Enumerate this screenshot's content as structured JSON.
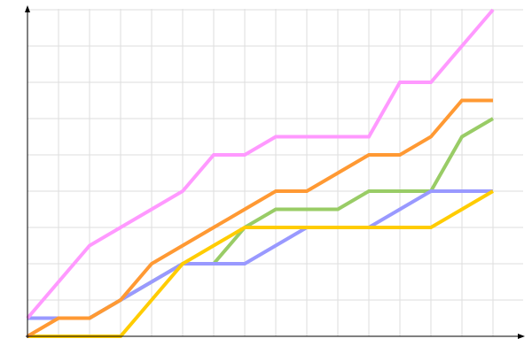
{
  "chart_data": {
    "type": "line",
    "title": "",
    "xlabel": "",
    "ylabel": "",
    "x": [
      0,
      1,
      2,
      3,
      4,
      5,
      6,
      7,
      8,
      9,
      10,
      11,
      12,
      13,
      14,
      15
    ],
    "xlim": [
      0,
      15
    ],
    "ylim": [
      0,
      9
    ],
    "grid": true,
    "legend": "none",
    "series": [
      {
        "color": "#99cc66",
        "values": [
          0.5,
          0.5,
          0.5,
          1,
          1.5,
          2,
          2,
          3,
          3.5,
          3.5,
          3.5,
          4,
          4,
          4,
          5.5,
          6
        ]
      },
      {
        "color": "#9999ff",
        "values": [
          0.5,
          0.5,
          0.5,
          1,
          1.5,
          2,
          2,
          2,
          2.5,
          3,
          3,
          3,
          3.5,
          4,
          4,
          4
        ]
      },
      {
        "color": "#ffcc00",
        "values": [
          0,
          0,
          0,
          0,
          1,
          2,
          2.5,
          3,
          3,
          3,
          3,
          3,
          3,
          3,
          3.5,
          4
        ]
      },
      {
        "color": "#ff9933",
        "values": [
          0,
          0.5,
          0.5,
          1,
          2,
          2.5,
          3,
          3.5,
          4,
          4,
          4.5,
          5,
          5,
          5.5,
          6.5,
          6.5
        ]
      },
      {
        "color": "#ff99ff",
        "values": [
          0.5,
          1.5,
          2.5,
          3,
          3.5,
          4,
          5,
          5,
          5.5,
          5.5,
          5.5,
          5.5,
          7,
          7,
          8,
          9
        ]
      }
    ]
  }
}
